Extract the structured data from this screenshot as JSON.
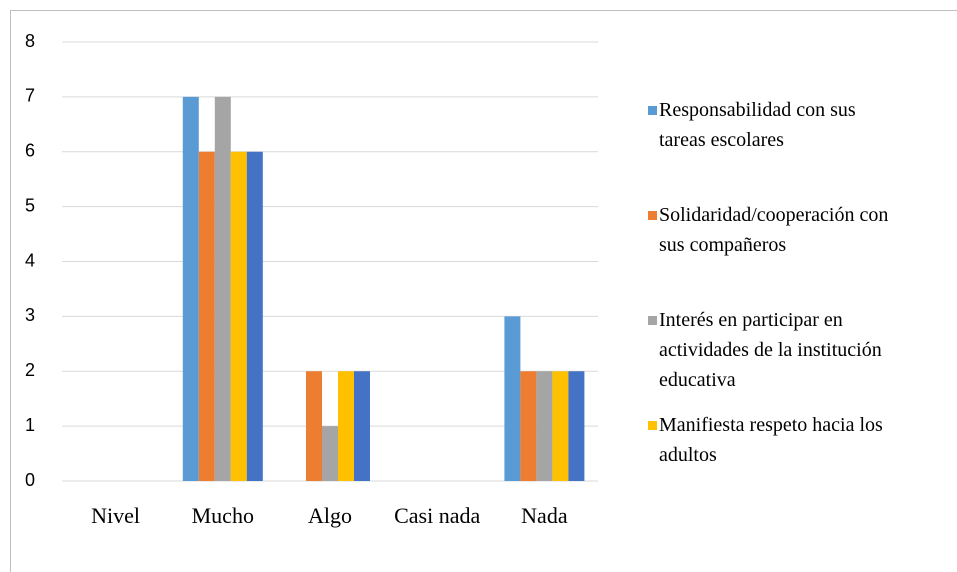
{
  "chart_data": {
    "type": "bar",
    "categories": [
      "Nivel",
      "Mucho",
      "Algo",
      "Casi nada",
      "Nada"
    ],
    "series": [
      {
        "name": "Responsabilidad con sus tareas escolares",
        "color": "#5b9bd5",
        "values": [
          null,
          7,
          0,
          0,
          3
        ]
      },
      {
        "name": "Solidaridad/cooperación con sus compañeros",
        "color": "#ed7d31",
        "values": [
          null,
          6,
          2,
          0,
          2
        ]
      },
      {
        "name": "Interés en participar en actividades de la institución educativa",
        "color": "#a5a5a5",
        "values": [
          null,
          7,
          1,
          0,
          2
        ]
      },
      {
        "name": "Manifiesta respeto hacia los adultos",
        "color": "#ffc000",
        "values": [
          null,
          6,
          2,
          0,
          2
        ]
      },
      {
        "color": "#4472c4",
        "values": [
          null,
          6,
          2,
          0,
          2
        ]
      }
    ],
    "ylim": [
      0,
      8
    ],
    "yticks": [
      0,
      1,
      2,
      3,
      4,
      5,
      6,
      7,
      8
    ],
    "grid": true,
    "legend": "right"
  }
}
